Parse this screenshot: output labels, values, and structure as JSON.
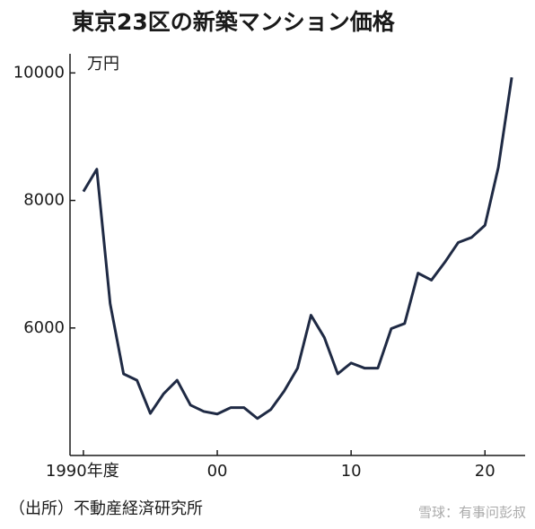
{
  "chart_data": {
    "type": "line",
    "title": "東京23区の新築マンション価格",
    "unit_label": "万円",
    "source": "（出所）不動産経済研究所",
    "watermark": "雪球：有事问彭叔",
    "x": [
      1990,
      1991,
      1992,
      1993,
      1994,
      1995,
      1996,
      1997,
      1998,
      1999,
      2000,
      2001,
      2002,
      2003,
      2004,
      2005,
      2006,
      2007,
      2008,
      2009,
      2010,
      2011,
      2012,
      2013,
      2014,
      2015,
      2016,
      2017,
      2018,
      2019,
      2020,
      2021,
      2022
    ],
    "series": [
      {
        "color": "#1f2a44",
        "values": [
          8140,
          8490,
          6380,
          5280,
          5180,
          4660,
          4970,
          5180,
          4790,
          4690,
          4650,
          4750,
          4750,
          4580,
          4720,
          5010,
          5370,
          6200,
          5850,
          5280,
          5450,
          5370,
          5370,
          5990,
          6070,
          6860,
          6750,
          7030,
          7340,
          7420,
          7610,
          8520,
          9930
        ]
      }
    ],
    "xlim": [
      1989,
      2023
    ],
    "ylim": [
      4000,
      10300
    ],
    "xticks": [
      {
        "value": 1990,
        "label": "1990年度"
      },
      {
        "value": 2000,
        "label": "00"
      },
      {
        "value": 2010,
        "label": "10"
      },
      {
        "value": 2020,
        "label": "20"
      }
    ],
    "yticks": [
      6000,
      8000,
      10000
    ]
  }
}
